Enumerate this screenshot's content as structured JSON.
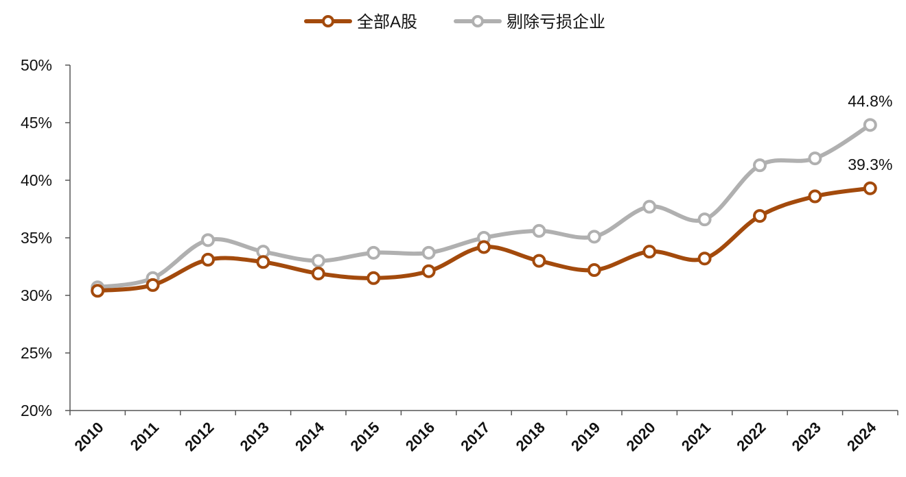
{
  "chart_data": {
    "type": "line",
    "x": [
      "2010",
      "2011",
      "2012",
      "2013",
      "2014",
      "2015",
      "2016",
      "2017",
      "2018",
      "2019",
      "2020",
      "2021",
      "2022",
      "2023",
      "2024"
    ],
    "series": [
      {
        "name": "全部A股",
        "color": "#a34a0c",
        "values": [
          30.4,
          30.9,
          33.1,
          32.9,
          31.9,
          31.5,
          32.1,
          34.2,
          33.0,
          32.2,
          33.8,
          33.2,
          36.9,
          38.6,
          39.3
        ]
      },
      {
        "name": "剔除亏损企业",
        "color": "#b0b0b0",
        "values": [
          30.7,
          31.5,
          34.8,
          33.8,
          33.0,
          33.7,
          33.7,
          35.0,
          35.6,
          35.1,
          37.7,
          36.6,
          41.3,
          41.9,
          44.8
        ]
      }
    ],
    "ylim": [
      20,
      50
    ],
    "yticks": [
      "20%",
      "25%",
      "30%",
      "35%",
      "40%",
      "45%",
      "50%"
    ],
    "annotations": [
      {
        "series": 1,
        "index": 14,
        "text": "44.8%"
      },
      {
        "series": 0,
        "index": 14,
        "text": "39.3%"
      }
    ],
    "legend_position": "top-center",
    "grid": false
  }
}
